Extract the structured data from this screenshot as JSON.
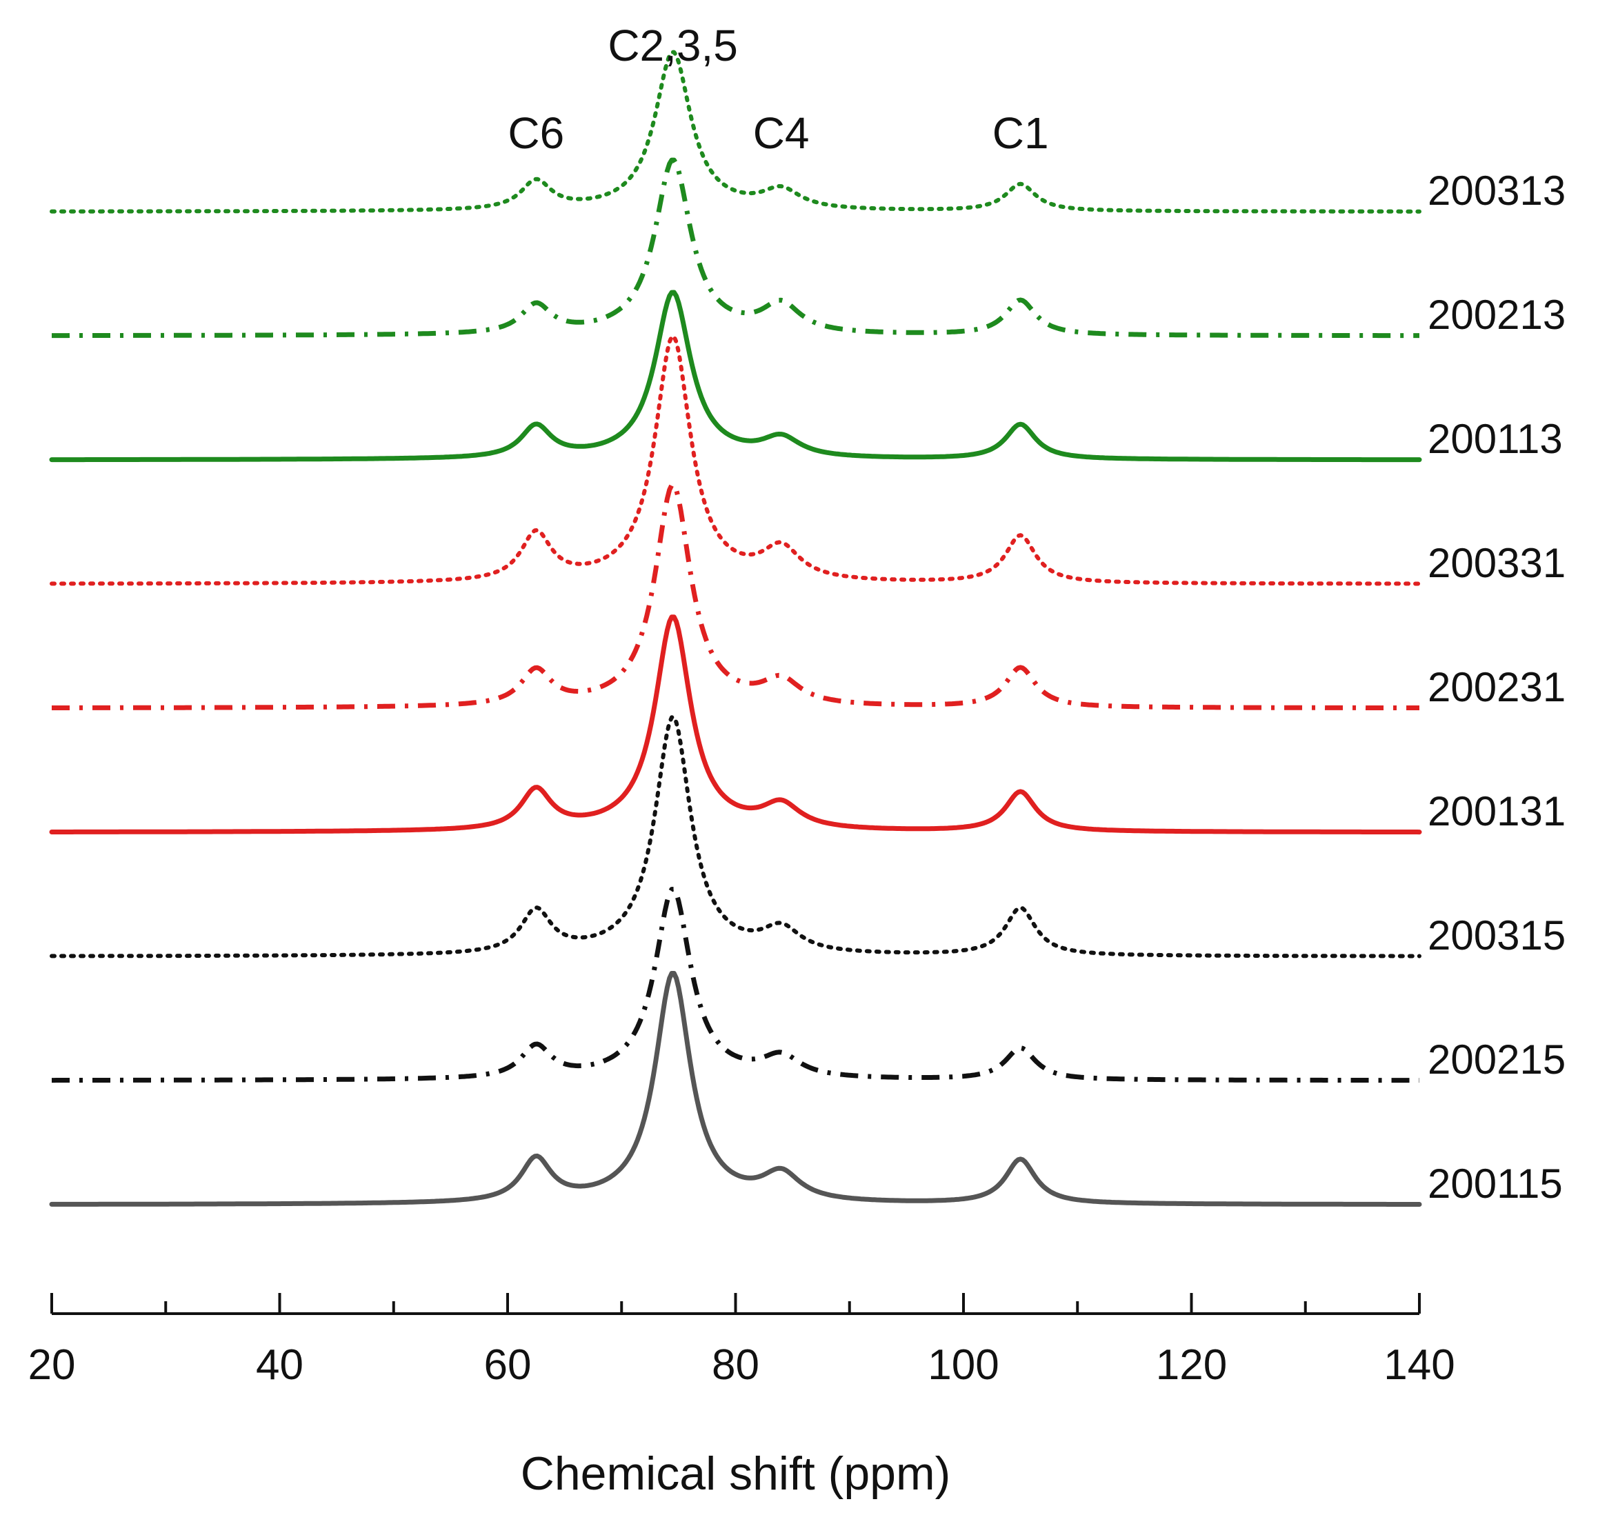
{
  "chart_data": {
    "type": "line",
    "title": "",
    "xlabel": "Chemical shift (ppm)",
    "ylabel": "",
    "xlim": [
      20,
      140
    ],
    "x_ticks": [
      20,
      40,
      60,
      80,
      100,
      120,
      140
    ],
    "grid": false,
    "legend": "none",
    "annotations": [
      {
        "text": "C6",
        "x": 62.5
      },
      {
        "text": "C2,3,5",
        "x": 74.5
      },
      {
        "text": "C4",
        "x": 84
      },
      {
        "text": "C1",
        "x": 105
      }
    ],
    "peaks": [
      {
        "x": 62.5,
        "width": 1.6
      },
      {
        "x": 74.5,
        "width": 1.9
      },
      {
        "x": 84,
        "width": 2.0
      },
      {
        "x": 105,
        "width": 1.6
      }
    ],
    "series": [
      {
        "name": "200313",
        "color": "#1e8a1e",
        "style": "dotted",
        "baseline": 0.07,
        "peak_heights": [
          0.18,
          1.0,
          0.12,
          0.17
        ]
      },
      {
        "name": "200213",
        "color": "#1e8a1e",
        "style": "dashdot",
        "baseline": 0.07,
        "peak_heights": [
          0.18,
          1.1,
          0.18,
          0.22
        ]
      },
      {
        "name": "200113",
        "color": "#1e8a1e",
        "style": "solid",
        "baseline": 0.07,
        "peak_heights": [
          0.2,
          1.05,
          0.12,
          0.22
        ]
      },
      {
        "name": "200331",
        "color": "#e02020",
        "style": "dotted",
        "baseline": 0.07,
        "peak_heights": [
          0.3,
          1.55,
          0.2,
          0.3
        ]
      },
      {
        "name": "200231",
        "color": "#e02020",
        "style": "dashdot",
        "baseline": 0.07,
        "peak_heights": [
          0.22,
          1.4,
          0.15,
          0.25
        ]
      },
      {
        "name": "200131",
        "color": "#e02020",
        "style": "solid",
        "baseline": 0.07,
        "peak_heights": [
          0.25,
          1.35,
          0.15,
          0.25
        ]
      },
      {
        "name": "200315",
        "color": "#111111",
        "style": "dotted",
        "baseline": 0.07,
        "peak_heights": [
          0.27,
          1.5,
          0.15,
          0.3
        ]
      },
      {
        "name": "200215",
        "color": "#111111",
        "style": "dashdot",
        "baseline": 0.07,
        "peak_heights": [
          0.2,
          1.2,
          0.13,
          0.2
        ]
      },
      {
        "name": "200115",
        "color": "#555555",
        "style": "solid",
        "baseline": 0.07,
        "peak_heights": [
          0.27,
          1.45,
          0.17,
          0.28
        ]
      }
    ]
  }
}
